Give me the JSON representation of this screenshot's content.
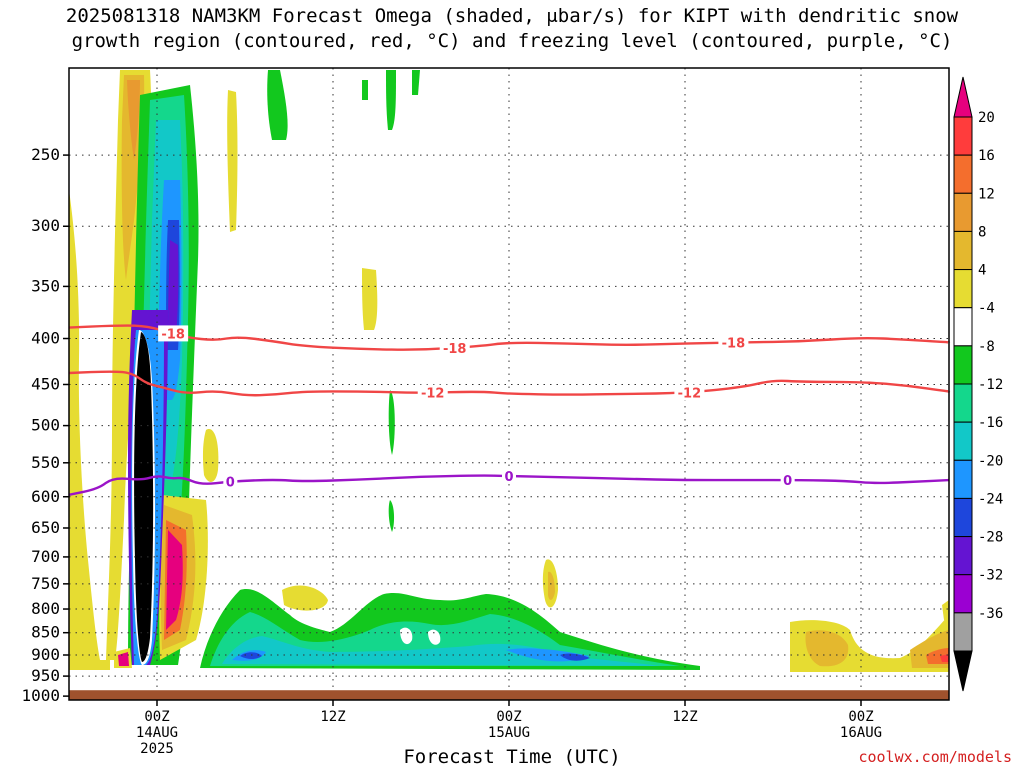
{
  "title": {
    "line1": "2025081318 NAM3KM Forecast Omega (shaded, μbar/s) for KIPT with dendritic snow",
    "line2": "growth region (contoured, red, °C) and freezing level (contoured, purple, °C)"
  },
  "credit": "coolwx.com/models",
  "chart_data": {
    "type": "heatmap",
    "xlabel": "Forecast Time (UTC)",
    "ylabel": "",
    "x_ticks": [
      {
        "hour": 6,
        "lines": [
          "00Z",
          "14AUG",
          "2025"
        ]
      },
      {
        "hour": 18,
        "lines": [
          "12Z"
        ]
      },
      {
        "hour": 30,
        "lines": [
          "00Z",
          "15AUG"
        ]
      },
      {
        "hour": 42,
        "lines": [
          "12Z"
        ]
      },
      {
        "hour": 54,
        "lines": [
          "00Z",
          "16AUG"
        ]
      }
    ],
    "xlim": [
      0,
      60
    ],
    "y_scale": "log",
    "y_ticks": [
      250,
      300,
      350,
      400,
      450,
      500,
      550,
      600,
      650,
      700,
      750,
      800,
      850,
      900,
      950,
      1000
    ],
    "ylim": [
      200,
      1010
    ],
    "ground_level": 985,
    "grid": true,
    "colorbar": {
      "bins": [
        {
          "label": "20",
          "color": "#ff3c3c"
        },
        {
          "label": "16",
          "color": "#f46e2d"
        },
        {
          "label": "12",
          "color": "#e89a30"
        },
        {
          "label": "8",
          "color": "#e4b82e"
        },
        {
          "label": "4",
          "color": "#e6dc32"
        },
        {
          "label": "-4",
          "color": "#ffffff"
        },
        {
          "label": "-8",
          "color": "#12c81e"
        },
        {
          "label": "-12",
          "color": "#14d78c"
        },
        {
          "label": "-16",
          "color": "#12c8c8"
        },
        {
          "label": "-20",
          "color": "#1e96ff"
        },
        {
          "label": "-24",
          "color": "#1e46dc"
        },
        {
          "label": "-28",
          "color": "#6414d2"
        },
        {
          "label": "-32",
          "color": "#9b00d2"
        },
        {
          "label": "-36",
          "color": "#a0a0a0"
        }
      ],
      "top_arrow_color": "#e6007e",
      "bottom_arrow_color": "#000000"
    },
    "contours": [
      {
        "label": "-18",
        "color": "#f04646",
        "label_hours": [
          7.1,
          26.3,
          45.3
        ],
        "points": [
          [
            0,
            389
          ],
          [
            3,
            387
          ],
          [
            5,
            387
          ],
          [
            6.5,
            392
          ],
          [
            8,
            399
          ],
          [
            10,
            402
          ],
          [
            11.5,
            398
          ],
          [
            14,
            403
          ],
          [
            16,
            408
          ],
          [
            20,
            411
          ],
          [
            24,
            412
          ],
          [
            28,
            408
          ],
          [
            30,
            404
          ],
          [
            34,
            405
          ],
          [
            38,
            407
          ],
          [
            42,
            405
          ],
          [
            46,
            404
          ],
          [
            50,
            403
          ],
          [
            54,
            399
          ],
          [
            57,
            401
          ],
          [
            60,
            404
          ]
        ]
      },
      {
        "label": "-12",
        "color": "#f04646",
        "label_hours": [
          24.8,
          42.3
        ],
        "points": [
          [
            0,
            437
          ],
          [
            3,
            435
          ],
          [
            4.3,
            437
          ],
          [
            5.3,
            449
          ],
          [
            6.3,
            453
          ],
          [
            8,
            461
          ],
          [
            10,
            457
          ],
          [
            12,
            463
          ],
          [
            14,
            462
          ],
          [
            16,
            458
          ],
          [
            20,
            458
          ],
          [
            24,
            460
          ],
          [
            28,
            458
          ],
          [
            30,
            461
          ],
          [
            34,
            462
          ],
          [
            38,
            461
          ],
          [
            42,
            460
          ],
          [
            46,
            453
          ],
          [
            48,
            445
          ],
          [
            50,
            447
          ],
          [
            54,
            447
          ],
          [
            57,
            451
          ],
          [
            60,
            458
          ]
        ]
      },
      {
        "label": "0",
        "color": "#9b14c8",
        "label_hours": [
          11,
          30,
          49
        ],
        "points": [
          [
            0,
            597
          ],
          [
            2,
            588
          ],
          [
            3,
            571
          ],
          [
            5,
            575
          ],
          [
            6,
            568
          ],
          [
            7,
            573
          ],
          [
            7.8,
            571
          ],
          [
            9,
            582
          ],
          [
            11,
            577
          ],
          [
            14,
            574
          ],
          [
            16,
            577
          ],
          [
            20,
            574
          ],
          [
            24,
            570
          ],
          [
            28,
            568
          ],
          [
            30,
            569
          ],
          [
            34,
            571
          ],
          [
            38,
            573
          ],
          [
            42,
            575
          ],
          [
            46,
            575
          ],
          [
            50,
            575
          ],
          [
            53,
            576
          ],
          [
            55,
            580
          ],
          [
            58,
            577
          ],
          [
            60,
            575
          ]
        ]
      }
    ]
  }
}
